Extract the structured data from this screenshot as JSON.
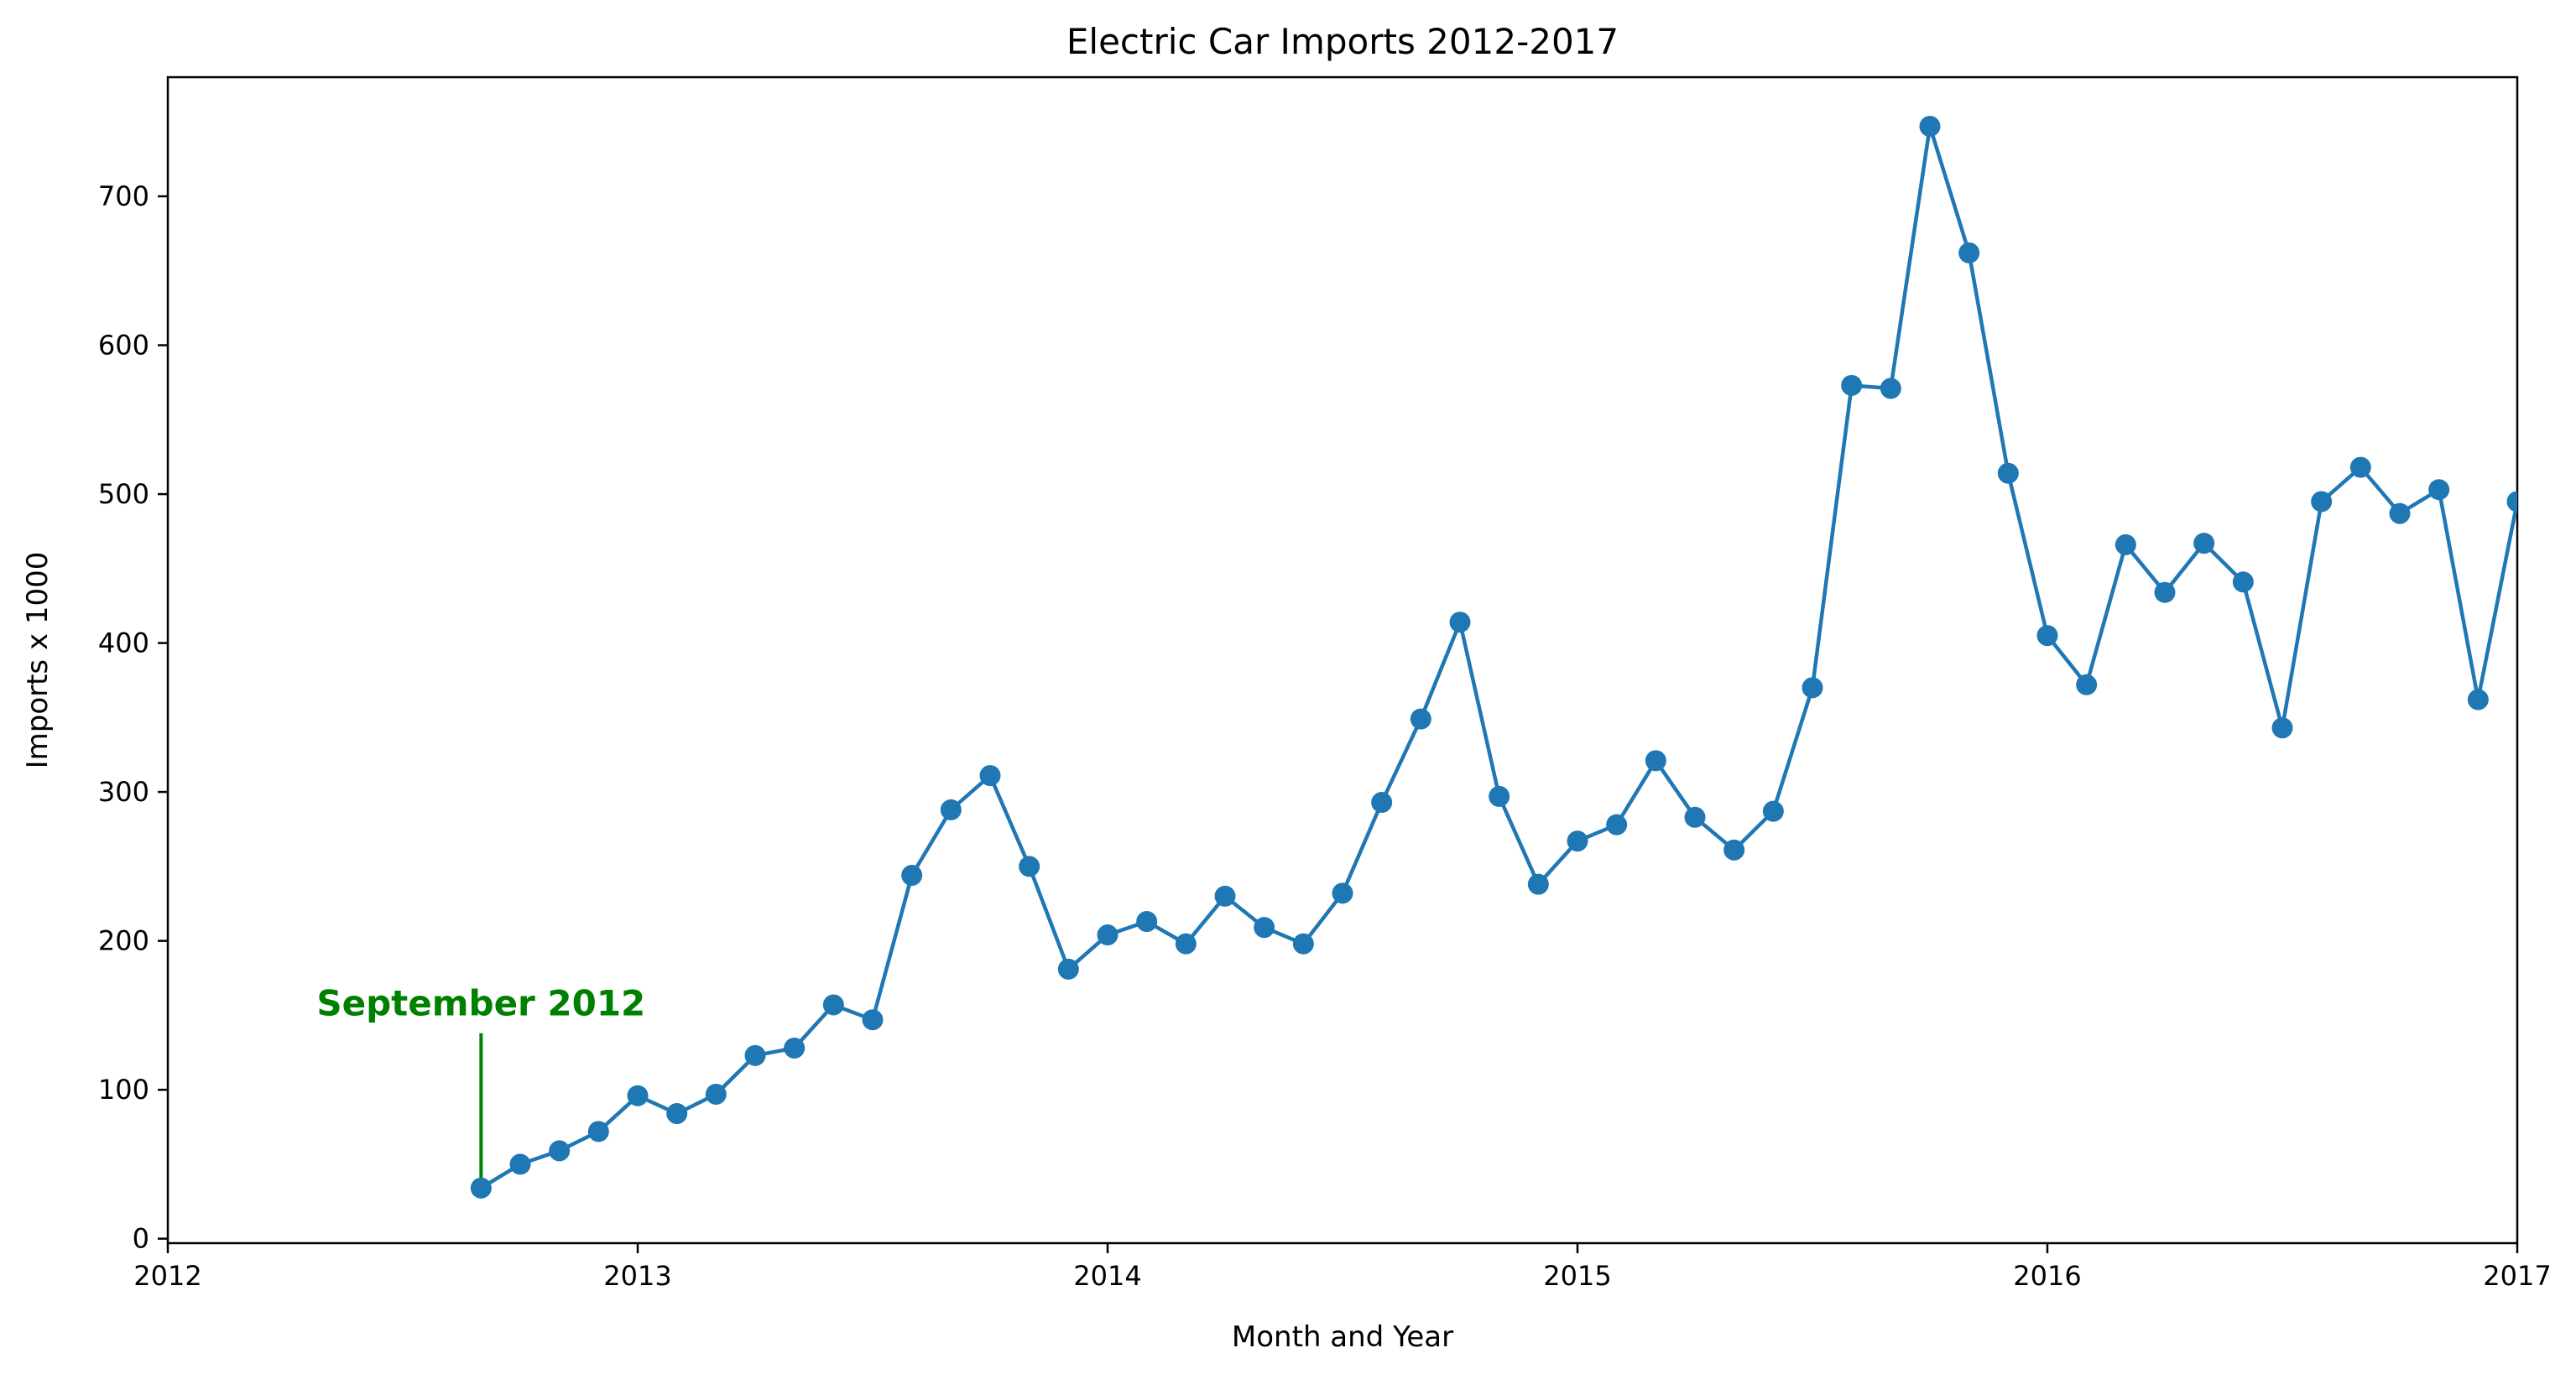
{
  "chart_data": {
    "type": "line",
    "title": "Electric Car Imports 2012-2017",
    "xlabel": "Month and Year",
    "ylabel": "Imports x 1000",
    "xlim": [
      "2012-01",
      "2017-01"
    ],
    "ylim": [
      -3,
      780
    ],
    "x_ticks": [
      "2012",
      "2013",
      "2014",
      "2015",
      "2016",
      "2017"
    ],
    "y_ticks": [
      0,
      100,
      200,
      300,
      400,
      500,
      600,
      700
    ],
    "grid": false,
    "legend": "none",
    "series_color": "#1f77b4",
    "series": [
      {
        "x": [
          "2012-09",
          "2012-10",
          "2012-11",
          "2012-12",
          "2013-01",
          "2013-02",
          "2013-03",
          "2013-04",
          "2013-05",
          "2013-06",
          "2013-07",
          "2013-08",
          "2013-09",
          "2013-10",
          "2013-11",
          "2013-12",
          "2014-01",
          "2014-02",
          "2014-03",
          "2014-04",
          "2014-05",
          "2014-06",
          "2014-07",
          "2014-08",
          "2014-09",
          "2014-10",
          "2014-11",
          "2014-12",
          "2015-01",
          "2015-02",
          "2015-03",
          "2015-04",
          "2015-05",
          "2015-06",
          "2015-07",
          "2015-08",
          "2015-09",
          "2015-10",
          "2015-11",
          "2015-12",
          "2016-01",
          "2016-02",
          "2016-03",
          "2016-04",
          "2016-05",
          "2016-06",
          "2016-07",
          "2016-08",
          "2016-09",
          "2016-10",
          "2016-11",
          "2016-12",
          "2017-01"
        ],
        "values": [
          34,
          50,
          59,
          72,
          96,
          84,
          97,
          123,
          128,
          157,
          147,
          244,
          288,
          311,
          250,
          181,
          204,
          213,
          198,
          230,
          209,
          198,
          232,
          293,
          349,
          414,
          297,
          238,
          267,
          278,
          321,
          283,
          261,
          287,
          370,
          573,
          571,
          747,
          662,
          514,
          405,
          372,
          466,
          434,
          467,
          441,
          343,
          495,
          518,
          487,
          503,
          362,
          495
        ]
      }
    ],
    "annotations": [
      {
        "text": "September 2012",
        "x": "2012-09",
        "y": 34,
        "color": "#008000"
      }
    ]
  }
}
